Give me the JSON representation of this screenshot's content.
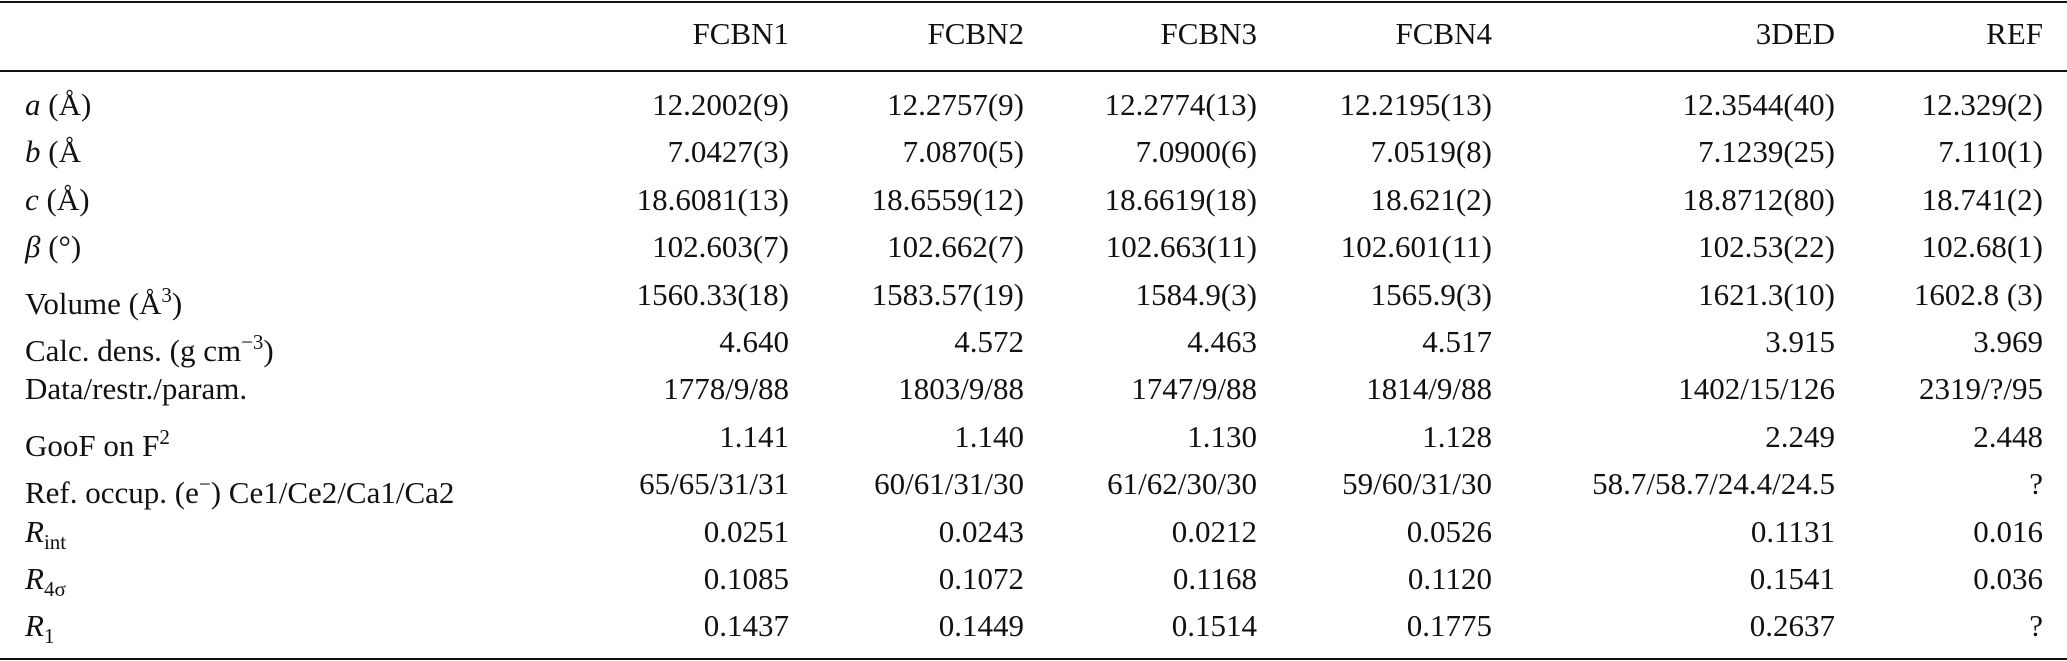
{
  "table": {
    "header": [
      "FCBN1",
      "FCBN2",
      "FCBN3",
      "FCBN4",
      "3DED",
      "REF"
    ],
    "rows": [
      {
        "label": [
          {
            "text": "a",
            "style": "italic"
          },
          {
            "text": " (Å)",
            "style": "plain"
          }
        ],
        "cells": [
          "12.2002(9)",
          "12.2757(9)",
          "12.2774(13)",
          "12.2195(13)",
          "12.3544(40)",
          "12.329(2)"
        ]
      },
      {
        "label": [
          {
            "text": "b",
            "style": "italic"
          },
          {
            "text": " (Å",
            "style": "plain"
          }
        ],
        "cells": [
          "7.0427(3)",
          "7.0870(5)",
          "7.0900(6)",
          "7.0519(8)",
          "7.1239(25)",
          "7.110(1)"
        ]
      },
      {
        "label": [
          {
            "text": "c",
            "style": "italic"
          },
          {
            "text": " (Å)",
            "style": "plain"
          }
        ],
        "cells": [
          "18.6081(13)",
          "18.6559(12)",
          "18.6619(18)",
          "18.621(2)",
          "18.8712(80)",
          "18.741(2)"
        ]
      },
      {
        "label": [
          {
            "text": "β",
            "style": "italic"
          },
          {
            "text": " (°)",
            "style": "plain"
          }
        ],
        "cells": [
          "102.603(7)",
          "102.662(7)",
          "102.663(11)",
          "102.601(11)",
          "102.53(22)",
          "102.68(1)"
        ]
      },
      {
        "label": [
          {
            "text": "Volume (Å",
            "style": "plain"
          },
          {
            "text": "3",
            "style": "sup"
          },
          {
            "text": ")",
            "style": "plain"
          }
        ],
        "cells": [
          "1560.33(18)",
          "1583.57(19)",
          "1584.9(3)",
          "1565.9(3)",
          "1621.3(10)",
          "1602.8 (3)"
        ]
      },
      {
        "label": [
          {
            "text": "Calc. dens. (g cm",
            "style": "plain"
          },
          {
            "text": "−3",
            "style": "sup"
          },
          {
            "text": ")",
            "style": "plain"
          }
        ],
        "cells": [
          "4.640",
          "4.572",
          "4.463",
          "4.517",
          "3.915",
          "3.969"
        ]
      },
      {
        "label": [
          {
            "text": "Data/restr./param.",
            "style": "plain"
          }
        ],
        "cells": [
          "1778/9/88",
          "1803/9/88",
          "1747/9/88",
          "1814/9/88",
          "1402/15/126",
          "2319/?/95"
        ]
      },
      {
        "label": [
          {
            "text": "GooF on F",
            "style": "plain"
          },
          {
            "text": "2",
            "style": "sup"
          }
        ],
        "cells": [
          "1.141",
          "1.140",
          "1.130",
          "1.128",
          "2.249",
          "2.448"
        ]
      },
      {
        "label": [
          {
            "text": "Ref. occup. (e",
            "style": "plain"
          },
          {
            "text": "−",
            "style": "sup"
          },
          {
            "text": ") Ce1/Ce2/Ca1/Ca2",
            "style": "plain"
          }
        ],
        "cells": [
          "65/65/31/31",
          "60/61/31/30",
          "61/62/30/30",
          "59/60/31/30",
          "58.7/58.7/24.4/24.5",
          "?"
        ]
      },
      {
        "label": [
          {
            "text": "R",
            "style": "italic"
          },
          {
            "text": "int",
            "style": "sub"
          }
        ],
        "cells": [
          "0.0251",
          "0.0243",
          "0.0212",
          "0.0526",
          "0.1131",
          "0.016"
        ]
      },
      {
        "label": [
          {
            "text": "R",
            "style": "italic"
          },
          {
            "text": "4σ",
            "style": "sub"
          }
        ],
        "cells": [
          "0.1085",
          "0.1072",
          "0.1168",
          "0.1120",
          "0.1541",
          "0.036"
        ]
      },
      {
        "label": [
          {
            "text": "R",
            "style": "italic"
          },
          {
            "text": "1",
            "style": "sub"
          }
        ],
        "cells": [
          "0.1437",
          "0.1449",
          "0.1514",
          "0.1775",
          "0.2637",
          "?"
        ]
      }
    ]
  }
}
